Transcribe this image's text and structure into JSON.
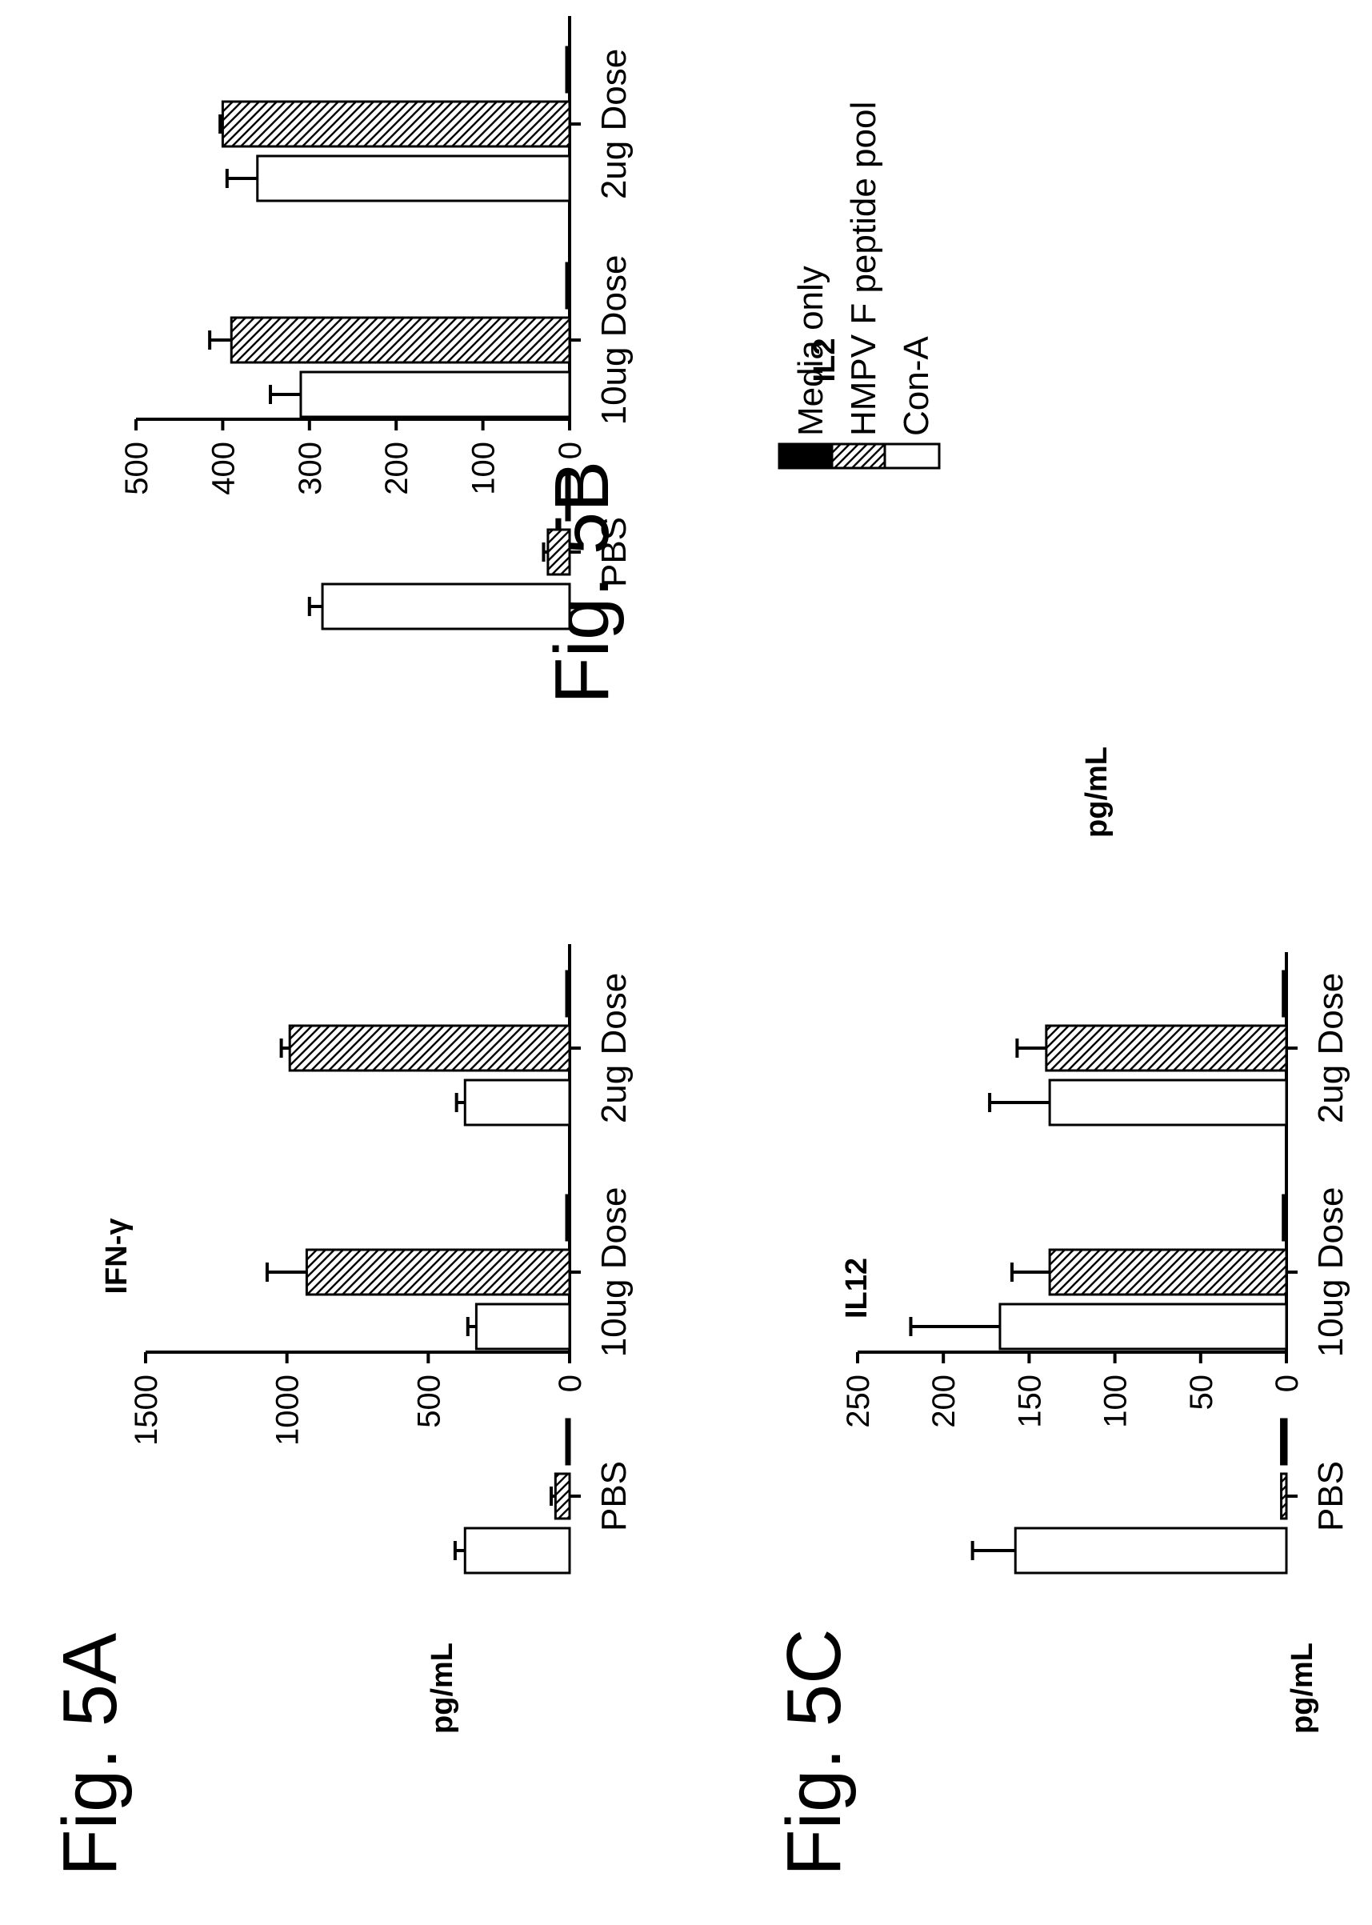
{
  "figure": {
    "panels": [
      "Fig. 5A",
      "Fig. 5B",
      "Fig. 5C"
    ]
  },
  "legend": [
    {
      "label": "Media only",
      "pattern": "solid"
    },
    {
      "label": "HMPV F peptide pool",
      "pattern": "hatched"
    },
    {
      "label": "Con-A",
      "pattern": "open"
    }
  ],
  "chart_data": [
    {
      "id": "5A",
      "type": "bar",
      "panel_label": "Fig. 5A",
      "title": "IFN-γ",
      "ylabel": "pg/mL",
      "xlabel": "",
      "categories": [
        "PBS",
        "10ug Dose",
        "2ug Dose"
      ],
      "ylim": [
        0,
        1500
      ],
      "yticks": [
        0,
        500,
        1000,
        1500
      ],
      "series": [
        {
          "name": "Media only",
          "values": [
            0,
            0,
            0
          ],
          "errors": [
            0,
            0,
            0
          ]
        },
        {
          "name": "HMPV F peptide pool",
          "values": [
            50,
            930,
            990
          ],
          "errors": [
            15,
            140,
            30
          ]
        },
        {
          "name": "Con-A",
          "values": [
            370,
            330,
            370
          ],
          "errors": [
            35,
            30,
            30
          ]
        }
      ],
      "grid": false
    },
    {
      "id": "5B",
      "type": "bar",
      "panel_label": "Fig. 5B",
      "title": "IL2",
      "ylabel": "pg/mL",
      "xlabel": "",
      "categories": [
        "PBS",
        "10ug Dose",
        "2ug Dose"
      ],
      "ylim": [
        0,
        500
      ],
      "yticks": [
        0,
        100,
        200,
        300,
        400,
        500
      ],
      "series": [
        {
          "name": "Media only",
          "values": [
            3,
            2,
            3
          ],
          "errors": [
            0,
            0,
            0
          ]
        },
        {
          "name": "HMPV F peptide pool",
          "values": [
            25,
            390,
            400
          ],
          "errors": [
            5,
            25,
            3
          ]
        },
        {
          "name": "Con-A",
          "values": [
            285,
            310,
            360
          ],
          "errors": [
            15,
            35,
            35
          ]
        }
      ],
      "grid": false
    },
    {
      "id": "5C",
      "type": "bar",
      "panel_label": "Fig. 5C",
      "title": "IL12",
      "ylabel": "pg/mL",
      "xlabel": "",
      "categories": [
        "PBS",
        "10ug Dose",
        "2ug Dose"
      ],
      "ylim": [
        0,
        250
      ],
      "yticks": [
        0,
        50,
        100,
        150,
        200,
        250
      ],
      "series": [
        {
          "name": "Media only",
          "values": [
            3,
            2,
            2
          ],
          "errors": [
            0,
            0,
            0
          ]
        },
        {
          "name": "HMPV F peptide pool",
          "values": [
            3,
            138,
            140
          ],
          "errors": [
            0,
            22,
            17
          ]
        },
        {
          "name": "Con-A",
          "values": [
            158,
            167,
            138
          ],
          "errors": [
            25,
            52,
            35
          ]
        }
      ],
      "grid": false
    }
  ]
}
